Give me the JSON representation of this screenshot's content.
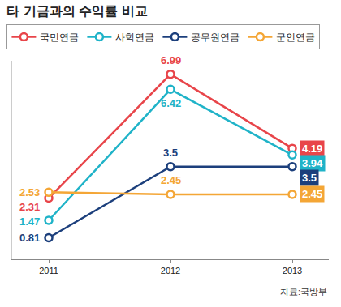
{
  "chart_data": {
    "type": "line",
    "title": "타 기금과의 수익률 비교",
    "source": "자료:국방부",
    "categories": [
      "2011",
      "2012",
      "2013"
    ],
    "series": [
      {
        "name": "국민연금",
        "color": "#e8454a",
        "values": [
          2.31,
          6.99,
          4.19
        ]
      },
      {
        "name": "사학연금",
        "color": "#1fb3c8",
        "values": [
          1.47,
          6.42,
          3.94
        ]
      },
      {
        "name": "공무원연금",
        "color": "#1c3f7c",
        "values": [
          0.81,
          3.5,
          3.5
        ]
      },
      {
        "name": "군인연금",
        "color": "#f4a636",
        "values": [
          2.53,
          2.45,
          2.45
        ]
      }
    ],
    "ylim": [
      0,
      7.5
    ],
    "yticks": [],
    "tick_labels": "x",
    "grid": false,
    "legend": "top",
    "data_labels": true,
    "marker": "circle",
    "line_style": "solid"
  }
}
